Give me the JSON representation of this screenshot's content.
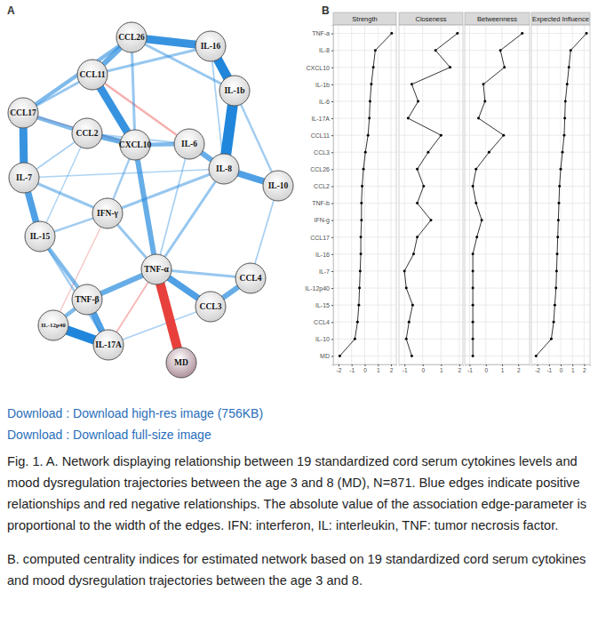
{
  "panel_a": {
    "label": "A",
    "nodes": [
      {
        "label": "CCL26",
        "color": "#cfcfcf"
      },
      {
        "label": "IL-16",
        "color": "#cfcfcf"
      },
      {
        "label": "CCL11",
        "color": "#cfcfcf"
      },
      {
        "label": "IL-1b",
        "color": "#cfcfcf"
      },
      {
        "label": "CCL17",
        "color": "#cfcfcf"
      },
      {
        "label": "CCL2",
        "color": "#cfcfcf"
      },
      {
        "label": "CXCL10",
        "color": "#cfcfcf"
      },
      {
        "label": "IL-6",
        "color": "#cfcfcf"
      },
      {
        "label": "IL-8",
        "color": "#cfcfcf"
      },
      {
        "label": "IL-7",
        "color": "#cfcfcf"
      },
      {
        "label": "IL-10",
        "color": "#cfcfcf"
      },
      {
        "label": "IFN-γ",
        "color": "#cfcfcf"
      },
      {
        "label": "IL-15",
        "color": "#cfcfcf"
      },
      {
        "label": "TNF-α",
        "color": "#cfcfcf"
      },
      {
        "label": "CCL4",
        "color": "#cfcfcf"
      },
      {
        "label": "TNF-β",
        "color": "#cfcfcf"
      },
      {
        "label": "CCL3",
        "color": "#cfcfcf"
      },
      {
        "label": "IL-12p40",
        "color": "#cfcfcf"
      },
      {
        "label": "IL-17A",
        "color": "#cfcfcf"
      },
      {
        "label": "MD",
        "color": "#a98893"
      }
    ],
    "edges": [
      {
        "source": 4,
        "target": 6,
        "weight": -0.05
      },
      {
        "source": 17,
        "target": 11,
        "weight": -0.04
      },
      {
        "source": 18,
        "target": 13,
        "weight": -0.06
      },
      {
        "source": 2,
        "target": 7,
        "weight": -0.08
      },
      {
        "source": 9,
        "target": 8,
        "weight": 0.05
      },
      {
        "source": 5,
        "target": 12,
        "weight": 0.05
      },
      {
        "source": 10,
        "target": 14,
        "weight": 0.06
      },
      {
        "source": 7,
        "target": 13,
        "weight": 0.06
      },
      {
        "source": 18,
        "target": 16,
        "weight": 0.06
      },
      {
        "source": 5,
        "target": 7,
        "weight": 0.06
      },
      {
        "source": 9,
        "target": 5,
        "weight": 0.06
      },
      {
        "source": 1,
        "target": 8,
        "weight": 0.06
      },
      {
        "source": 3,
        "target": 10,
        "weight": 0.08
      },
      {
        "source": 12,
        "target": 11,
        "weight": 0.08
      },
      {
        "source": 6,
        "target": 11,
        "weight": 0.08
      },
      {
        "source": 12,
        "target": 18,
        "weight": 0.08
      },
      {
        "source": 11,
        "target": 13,
        "weight": 0.1
      },
      {
        "source": 11,
        "target": 8,
        "weight": 0.1
      },
      {
        "source": 11,
        "target": 9,
        "weight": 0.1
      },
      {
        "source": 0,
        "target": 3,
        "weight": 0.1
      },
      {
        "source": 0,
        "target": 6,
        "weight": 0.1
      },
      {
        "source": 8,
        "target": 13,
        "weight": 0.1
      },
      {
        "source": 2,
        "target": 1,
        "weight": 0.1
      },
      {
        "source": 2,
        "target": 4,
        "weight": 0.1
      },
      {
        "source": 13,
        "target": 14,
        "weight": 0.1
      },
      {
        "source": 0,
        "target": 4,
        "weight": 0.15
      },
      {
        "source": 5,
        "target": 4,
        "weight": 0.15
      },
      {
        "source": 6,
        "target": 7,
        "weight": 0.15
      },
      {
        "source": 15,
        "target": 17,
        "weight": 0.15
      },
      {
        "source": 12,
        "target": 15,
        "weight": 0.15
      },
      {
        "source": 2,
        "target": 0,
        "weight": 0.2
      },
      {
        "source": 5,
        "target": 6,
        "weight": 0.2
      },
      {
        "source": 6,
        "target": 13,
        "weight": 0.2
      },
      {
        "source": 7,
        "target": 8,
        "weight": 0.2
      },
      {
        "source": 13,
        "target": 15,
        "weight": 0.2
      },
      {
        "source": 16,
        "target": 14,
        "weight": 0.2
      },
      {
        "source": 8,
        "target": 10,
        "weight": 0.25
      },
      {
        "source": 9,
        "target": 12,
        "weight": 0.25
      },
      {
        "source": 13,
        "target": 16,
        "weight": 0.25
      },
      {
        "source": 15,
        "target": 18,
        "weight": 0.25
      },
      {
        "source": 0,
        "target": 1,
        "weight": 0.3
      },
      {
        "source": 4,
        "target": 9,
        "weight": 0.3
      },
      {
        "source": 2,
        "target": 6,
        "weight": 0.3
      },
      {
        "source": 1,
        "target": 3,
        "weight": 0.35
      },
      {
        "source": 17,
        "target": 18,
        "weight": 0.35
      },
      {
        "source": 19,
        "target": 13,
        "weight": -0.35
      },
      {
        "source": 3,
        "target": 8,
        "weight": 0.4
      }
    ]
  },
  "panel_b": {
    "label": "B"
  },
  "chart_data": [
    {
      "type": "line",
      "title": "Strength",
      "orientation": "horizontal",
      "grid": true,
      "marker": "circle",
      "color": "#000000",
      "categories": [
        "TNF-a",
        "IL-8",
        "CXCL10",
        "IL-1b",
        "IL-6",
        "IL-17A",
        "CCL11",
        "CCL3",
        "CCL26",
        "CCL2",
        "TNF-b",
        "IFN-g",
        "CCL17",
        "IL-16",
        "IL-7",
        "IL-12p40",
        "IL-15",
        "CCL4",
        "IL-10",
        "MD"
      ],
      "values": [
        2.05,
        0.8,
        0.65,
        0.5,
        0.4,
        0.35,
        0.25,
        0.05,
        -0.1,
        -0.2,
        -0.25,
        -0.25,
        -0.3,
        -0.3,
        -0.35,
        -0.4,
        -0.45,
        -0.55,
        -0.75,
        -1.9
      ],
      "xlim": [
        -2.4,
        2.4
      ],
      "xticks": [
        -2,
        -1,
        0,
        1,
        2
      ]
    },
    {
      "type": "line",
      "title": "Closeness",
      "orientation": "horizontal",
      "grid": true,
      "marker": "circle",
      "color": "#000000",
      "tick_labels": "x",
      "categories": [
        "TNF-a",
        "IL-8",
        "CXCL10",
        "IL-1b",
        "IL-6",
        "IL-17A",
        "CCL11",
        "CCL3",
        "CCL26",
        "CCL2",
        "TNF-b",
        "IFN-g",
        "CCL17",
        "IL-16",
        "IL-7",
        "IL-12p40",
        "IL-15",
        "CCL4",
        "IL-10",
        "MD"
      ],
      "values": [
        1.9,
        0.7,
        1.5,
        -0.6,
        -0.25,
        -0.8,
        1.0,
        0.3,
        -0.3,
        0.05,
        -0.3,
        0.45,
        -0.3,
        -0.5,
        -1.0,
        -0.9,
        -0.55,
        -0.75,
        -0.9,
        -0.6
      ],
      "xlim": [
        -1.3,
        2.2
      ],
      "xticks": [
        -1,
        0,
        1,
        2
      ]
    },
    {
      "type": "line",
      "title": "Betweenness",
      "orientation": "horizontal",
      "grid": true,
      "marker": "circle",
      "color": "#000000",
      "tick_labels": "x",
      "categories": [
        "TNF-a",
        "IL-8",
        "CXCL10",
        "IL-1b",
        "IL-6",
        "IL-17A",
        "CCL11",
        "CCL3",
        "CCL26",
        "CCL2",
        "TNF-b",
        "IFN-g",
        "CCL17",
        "IL-16",
        "IL-7",
        "IL-12p40",
        "IL-15",
        "CCL4",
        "IL-10",
        "MD"
      ],
      "values": [
        2.25,
        0.9,
        1.15,
        -0.15,
        -0.05,
        -0.45,
        1.1,
        0.2,
        -0.6,
        -0.8,
        -0.6,
        -0.25,
        -0.55,
        -0.8,
        -0.8,
        -0.8,
        -0.8,
        -0.8,
        -0.8,
        -0.8
      ],
      "xlim": [
        -1.3,
        2.7
      ],
      "xticks": [
        -1,
        0,
        1,
        2
      ]
    },
    {
      "type": "line",
      "title": "Expected Influence",
      "orientation": "horizontal",
      "grid": true,
      "marker": "circle",
      "color": "#000000",
      "tick_labels": "x",
      "categories": [
        "TNF-a",
        "IL-8",
        "CXCL10",
        "IL-1b",
        "IL-6",
        "IL-17A",
        "CCL11",
        "CCL3",
        "CCL26",
        "CCL2",
        "TNF-b",
        "IFN-g",
        "CCL17",
        "IL-16",
        "IL-7",
        "IL-12p40",
        "IL-15",
        "CCL4",
        "IL-10",
        "MD"
      ],
      "values": [
        2.2,
        0.85,
        0.7,
        0.55,
        0.4,
        0.35,
        0.3,
        0.15,
        0,
        -0.1,
        -0.15,
        -0.2,
        -0.25,
        -0.3,
        -0.35,
        -0.4,
        -0.5,
        -0.6,
        -0.8,
        -2.1
      ],
      "xlim": [
        -2.5,
        2.5
      ],
      "xticks": [
        -2,
        -1,
        0,
        1,
        2
      ]
    }
  ],
  "downloads": [
    {
      "prefix": "Download :",
      "link": "Download high-res image (756KB)"
    },
    {
      "prefix": "Download :",
      "link": "Download full-size image"
    }
  ],
  "caption": [
    "Fig. 1. A. Network displaying relationship between 19 standardized cord serum cytokines levels and mood dysregulation trajectories between the age 3 and 8 (MD), N=871. Blue edges indicate positive relationships and red negative relationships. The absolute value of the association edge-parameter is proportional to the width of the edges. IFN: interferon, IL: interleukin, TNF: tumor necrosis factor.",
    "B. computed centrality indices for estimated network based on 19 standardized cord serum cytokines and mood dysregulation trajectories between the age 3 and 8."
  ]
}
